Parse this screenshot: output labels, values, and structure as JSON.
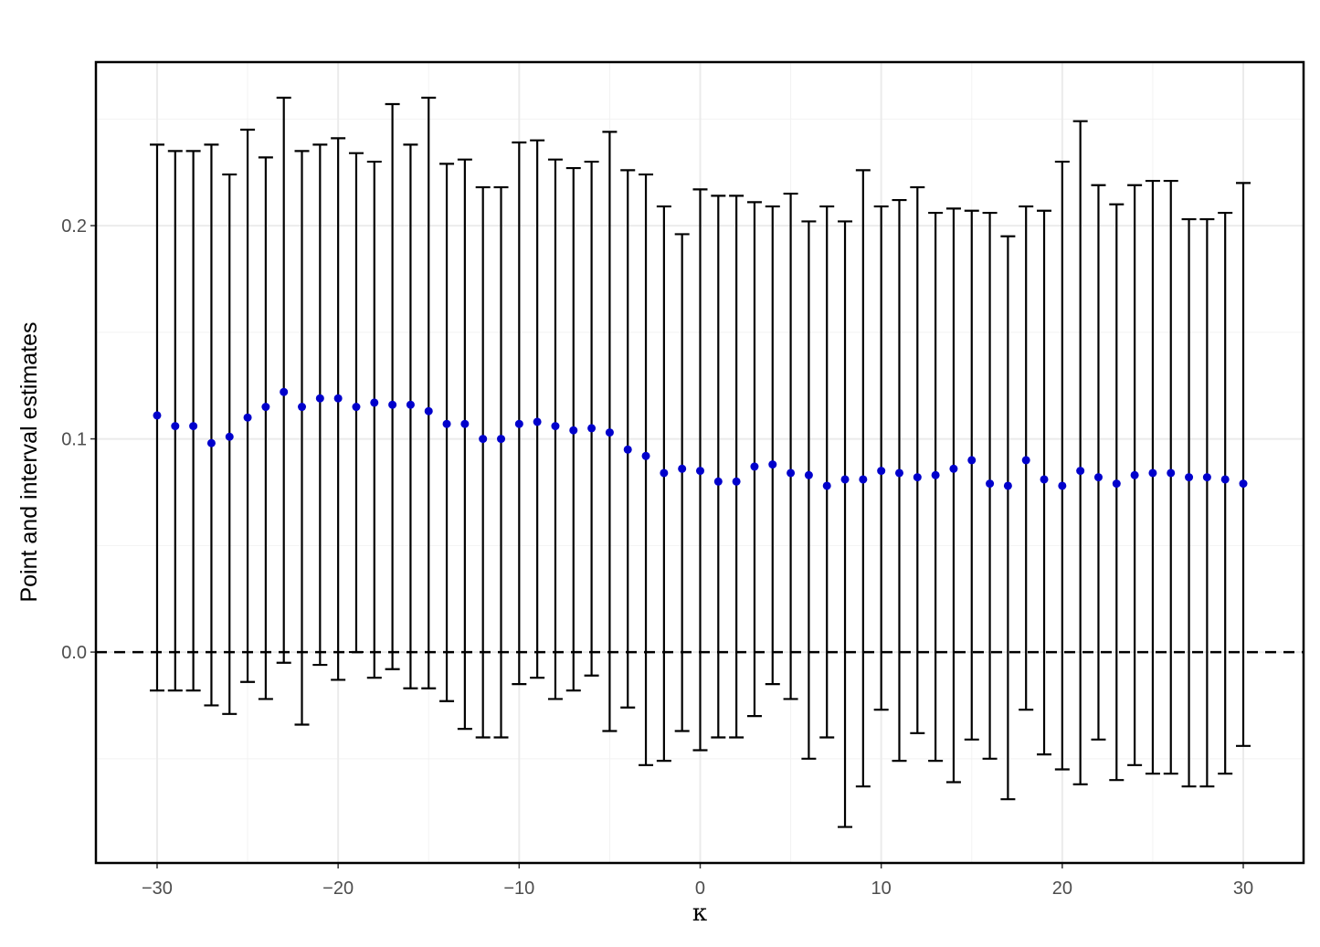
{
  "chart_data": {
    "type": "errorbar",
    "x_label": "κ",
    "y_label": "Point and interval estimates",
    "x": [
      -30,
      -29,
      -28,
      -27,
      -26,
      -25,
      -24,
      -23,
      -22,
      -21,
      -20,
      -19,
      -18,
      -17,
      -16,
      -15,
      -14,
      -13,
      -12,
      -11,
      -10,
      -9,
      -8,
      -7,
      -6,
      -5,
      -4,
      -3,
      -2,
      -1,
      0,
      1,
      2,
      3,
      4,
      5,
      6,
      7,
      8,
      9,
      10,
      11,
      12,
      13,
      14,
      15,
      16,
      17,
      18,
      19,
      20,
      21,
      22,
      23,
      24,
      25,
      26,
      27,
      28,
      29,
      30
    ],
    "series": [
      {
        "color": "#0000cc",
        "values": [
          0.111,
          0.106,
          0.106,
          0.098,
          0.101,
          0.11,
          0.115,
          0.122,
          0.115,
          0.119,
          0.119,
          0.115,
          0.117,
          0.116,
          0.116,
          0.113,
          0.107,
          0.107,
          0.1,
          0.1,
          0.107,
          0.108,
          0.106,
          0.104,
          0.105,
          0.103,
          0.095,
          0.092,
          0.084,
          0.086,
          0.085,
          0.08,
          0.08,
          0.087,
          0.088,
          0.084,
          0.083,
          0.078,
          0.081,
          0.081,
          0.085,
          0.084,
          0.082,
          0.083,
          0.086,
          0.09,
          0.079,
          0.078,
          0.09,
          0.081,
          0.078,
          0.085,
          0.082,
          0.079,
          0.083,
          0.084,
          0.084,
          0.082,
          0.082,
          0.081,
          0.079
        ],
        "lower": [
          -0.018,
          -0.018,
          -0.018,
          -0.025,
          -0.029,
          -0.014,
          -0.022,
          -0.005,
          -0.034,
          -0.006,
          -0.013,
          -0.0,
          -0.012,
          -0.008,
          -0.017,
          -0.017,
          -0.023,
          -0.036,
          -0.04,
          -0.04,
          -0.015,
          -0.012,
          -0.022,
          -0.018,
          -0.011,
          -0.037,
          -0.026,
          -0.053,
          -0.051,
          -0.037,
          -0.046,
          -0.04,
          -0.04,
          -0.03,
          -0.015,
          -0.022,
          -0.05,
          -0.04,
          -0.082,
          -0.063,
          -0.027,
          -0.051,
          -0.038,
          -0.051,
          -0.061,
          -0.041,
          -0.05,
          -0.069,
          -0.027,
          -0.048,
          -0.055,
          -0.062,
          -0.041,
          -0.06,
          -0.053,
          -0.057,
          -0.057,
          -0.063,
          -0.063,
          -0.057,
          -0.044
        ],
        "upper": [
          0.238,
          0.235,
          0.235,
          0.238,
          0.224,
          0.245,
          0.232,
          0.26,
          0.235,
          0.238,
          0.241,
          0.234,
          0.23,
          0.257,
          0.238,
          0.26,
          0.229,
          0.231,
          0.218,
          0.218,
          0.239,
          0.24,
          0.231,
          0.227,
          0.23,
          0.244,
          0.226,
          0.224,
          0.209,
          0.196,
          0.217,
          0.214,
          0.214,
          0.211,
          0.209,
          0.215,
          0.202,
          0.209,
          0.202,
          0.226,
          0.209,
          0.212,
          0.218,
          0.206,
          0.208,
          0.207,
          0.206,
          0.195,
          0.209,
          0.207,
          0.23,
          0.249,
          0.219,
          0.21,
          0.219,
          0.221,
          0.221,
          0.203,
          0.203,
          0.206,
          0.22
        ]
      }
    ],
    "xlim": [
      -33.38,
      33.33
    ],
    "ylim": [
      -0.0989,
      0.2767
    ],
    "xticks": [
      {
        "value": -30,
        "label": "−30"
      },
      {
        "value": -20,
        "label": "−20"
      },
      {
        "value": -10,
        "label": "−10"
      },
      0,
      10,
      20,
      30
    ],
    "yticks": [
      {
        "value": 0,
        "label": "0.0"
      },
      0.1,
      0.2
    ],
    "xminor": [
      -25,
      -15,
      -5,
      5,
      15,
      25
    ],
    "yminor": [
      -0.05,
      0.05,
      0.15,
      0.25
    ],
    "hline": 0,
    "grid": true
  }
}
